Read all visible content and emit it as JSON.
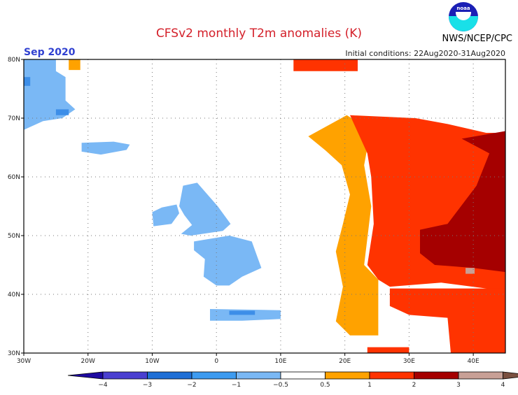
{
  "header": {
    "title": "CFSv2 monthly T2m anomalies (K)",
    "period": "Sep 2020",
    "initial_conditions": "Initial conditions: 22Aug2020-31Aug2020",
    "agency": "NWS/NCEP/CPC",
    "logo_text": "noaa"
  },
  "map": {
    "lon_range": [
      -30,
      45
    ],
    "lat_range": [
      30,
      80
    ],
    "lon_ticks": [
      {
        "v": -30,
        "label": "30W"
      },
      {
        "v": -20,
        "label": "20W"
      },
      {
        "v": -10,
        "label": "10W"
      },
      {
        "v": 0,
        "label": "0"
      },
      {
        "v": 10,
        "label": "10E"
      },
      {
        "v": 20,
        "label": "20E"
      },
      {
        "v": 30,
        "label": "30E"
      },
      {
        "v": 40,
        "label": "40E"
      }
    ],
    "lat_ticks": [
      {
        "v": 80,
        "label": "80N"
      },
      {
        "v": 70,
        "label": "70N"
      },
      {
        "v": 60,
        "label": "60N"
      },
      {
        "v": 50,
        "label": "50N"
      },
      {
        "v": 40,
        "label": "40N"
      },
      {
        "v": 30,
        "label": "30N"
      }
    ],
    "grid": "dotted",
    "regions": [
      {
        "bin": "0.5 to 1",
        "color": "#ffa200",
        "points": [
          [
            14.3,
            66.9
          ],
          [
            20.3,
            70.5
          ],
          [
            24,
            68
          ],
          [
            23,
            62
          ],
          [
            24.1,
            55
          ],
          [
            23,
            45
          ],
          [
            25.2,
            42.5
          ],
          [
            25.2,
            33
          ],
          [
            20.8,
            33
          ],
          [
            18.6,
            35.4
          ],
          [
            19.7,
            41.3
          ],
          [
            18.6,
            47.3
          ],
          [
            19.7,
            52
          ],
          [
            20.8,
            57
          ],
          [
            19.5,
            62
          ],
          [
            17,
            64.5
          ]
        ]
      },
      {
        "bin": "0.5 to 1",
        "color": "#ffa200",
        "points": [
          [
            -23,
            80
          ],
          [
            -21.2,
            80
          ],
          [
            -21.2,
            78.2
          ],
          [
            -23,
            78.2
          ]
        ]
      },
      {
        "bin": "1 to 2",
        "color": "#ff3300",
        "points": [
          [
            20.8,
            70.5
          ],
          [
            31,
            70
          ],
          [
            36,
            69
          ],
          [
            42,
            67.5
          ],
          [
            45,
            67.5
          ],
          [
            45,
            39
          ],
          [
            42,
            41
          ],
          [
            35,
            42
          ],
          [
            27,
            41.3
          ],
          [
            25.2,
            42.5
          ],
          [
            23.5,
            45
          ],
          [
            24.5,
            52
          ],
          [
            24.1,
            60
          ],
          [
            23.5,
            64
          ]
        ]
      },
      {
        "bin": "1 to 2",
        "color": "#ff3300",
        "points": [
          [
            27,
            41
          ],
          [
            45,
            41
          ],
          [
            45,
            30
          ],
          [
            36.5,
            30
          ],
          [
            36,
            36
          ],
          [
            30,
            36.5
          ],
          [
            27,
            38
          ]
        ]
      },
      {
        "bin": "1 to 2",
        "color": "#ff3300",
        "points": [
          [
            23.5,
            31
          ],
          [
            30,
            31
          ],
          [
            30,
            30
          ],
          [
            23.5,
            30
          ]
        ]
      },
      {
        "bin": "1 to 2",
        "color": "#ff3300",
        "points": [
          [
            12,
            80
          ],
          [
            22,
            80
          ],
          [
            22,
            78
          ],
          [
            12,
            78
          ]
        ]
      },
      {
        "bin": "2 to 3",
        "color": "#a50000",
        "points": [
          [
            38.2,
            66.5
          ],
          [
            45,
            67.8
          ],
          [
            45,
            43.8
          ],
          [
            40,
            44.5
          ],
          [
            34,
            45
          ],
          [
            31.7,
            47
          ],
          [
            31.7,
            51
          ],
          [
            36,
            52
          ],
          [
            40.5,
            58.5
          ],
          [
            42.5,
            64
          ]
        ]
      },
      {
        "bin": "3 to 4",
        "color": "#c8a096",
        "points": [
          [
            38.8,
            44.5
          ],
          [
            40.2,
            44.5
          ],
          [
            40.2,
            43.5
          ],
          [
            38.8,
            43.5
          ]
        ]
      },
      {
        "bin": "-0.5 to -1",
        "color": "#7ab8f5",
        "points": [
          [
            -30,
            80
          ],
          [
            -25,
            80
          ],
          [
            -25,
            78
          ],
          [
            -23.5,
            77
          ],
          [
            -23.5,
            73
          ],
          [
            -22,
            71.5
          ],
          [
            -24,
            70
          ],
          [
            -27,
            69.5
          ],
          [
            -30,
            68
          ]
        ]
      },
      {
        "bin": "-1 to -2",
        "color": "#3d8ee8",
        "points": [
          [
            -30,
            77
          ],
          [
            -29,
            77
          ],
          [
            -29,
            75.5
          ],
          [
            -30,
            75.5
          ]
        ]
      },
      {
        "bin": "-1 to -2",
        "color": "#3d8ee8",
        "points": [
          [
            -25,
            71.5
          ],
          [
            -23,
            71.5
          ],
          [
            -23,
            70.5
          ],
          [
            -25,
            70.5
          ]
        ]
      },
      {
        "bin": "-0.5 to -1",
        "color": "#7ab8f5",
        "points": [
          [
            -21,
            65.8
          ],
          [
            -16,
            66
          ],
          [
            -13.5,
            65.5
          ],
          [
            -14,
            64.6
          ],
          [
            -18,
            63.8
          ],
          [
            -21,
            64.3
          ]
        ]
      },
      {
        "bin": "-0.5 to -1",
        "color": "#7ab8f5",
        "points": [
          [
            -5.2,
            58.5
          ],
          [
            -3,
            59
          ],
          [
            -1.8,
            57.5
          ],
          [
            0.2,
            55
          ],
          [
            2.2,
            52
          ],
          [
            1,
            50.8
          ],
          [
            -4,
            50
          ],
          [
            -5.5,
            50.3
          ],
          [
            -3.8,
            51.8
          ],
          [
            -5,
            53.5
          ],
          [
            -5.8,
            55
          ]
        ]
      },
      {
        "bin": "-0.5 to -1",
        "color": "#7ab8f5",
        "points": [
          [
            -8.5,
            54.8
          ],
          [
            -6.2,
            55.3
          ],
          [
            -5.8,
            53.8
          ],
          [
            -7,
            52
          ],
          [
            -9.8,
            51.6
          ],
          [
            -10,
            54
          ]
        ]
      },
      {
        "bin": "-0.5 to -1",
        "color": "#7ab8f5",
        "points": [
          [
            -3.5,
            49
          ],
          [
            2,
            50
          ],
          [
            5.5,
            49
          ],
          [
            6.5,
            46
          ],
          [
            7,
            44.5
          ],
          [
            4,
            43
          ],
          [
            2,
            41.5
          ],
          [
            0,
            41.5
          ],
          [
            -2,
            43
          ],
          [
            -1.8,
            46
          ],
          [
            -3.5,
            47.5
          ]
        ]
      },
      {
        "bin": "-0.5 to -1",
        "color": "#7ab8f5",
        "points": [
          [
            -1,
            37.5
          ],
          [
            10,
            37.3
          ],
          [
            10,
            35.8
          ],
          [
            4,
            35.5
          ],
          [
            -1,
            35.5
          ]
        ]
      },
      {
        "bin": "-1 to -2",
        "color": "#3d8ee8",
        "points": [
          [
            2,
            37.2
          ],
          [
            6,
            37.2
          ],
          [
            6,
            36.5
          ],
          [
            2,
            36.5
          ]
        ]
      }
    ]
  },
  "colorbar": {
    "bins": [
      {
        "color": "#1e0aa0"
      },
      {
        "color": "#4a3fd0"
      },
      {
        "color": "#1f6fd6"
      },
      {
        "color": "#3d9bf0"
      },
      {
        "color": "#7ab8f5"
      },
      {
        "color": "#ffffff"
      },
      {
        "color": "#ffa200"
      },
      {
        "color": "#ff3300"
      },
      {
        "color": "#a50000"
      },
      {
        "color": "#c8a096"
      },
      {
        "color": "#7a5040"
      }
    ],
    "labels": [
      "−4",
      "−3",
      "−2",
      "−1",
      "−0.5",
      "0.5",
      "1",
      "2",
      "3",
      "4"
    ]
  }
}
